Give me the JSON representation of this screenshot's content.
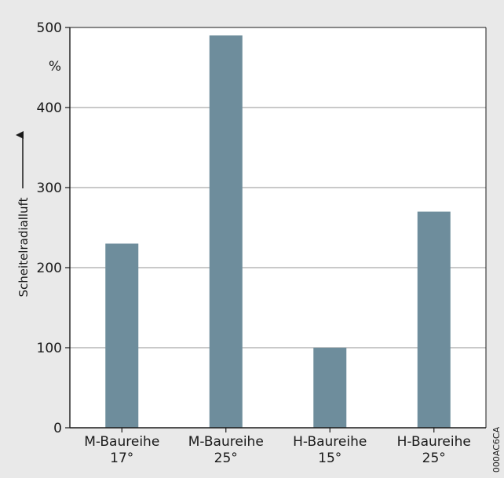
{
  "chart_data": {
    "type": "bar",
    "categories": [
      [
        "M-Baureihe",
        "17°"
      ],
      [
        "M-Baureihe",
        "25°"
      ],
      [
        "H-Baureihe",
        "15°"
      ],
      [
        "H-Baureihe",
        "25°"
      ]
    ],
    "values": [
      230,
      490,
      100,
      270
    ],
    "ylabel": "Scheitelradialluft",
    "yunit": "%",
    "ylim": [
      0,
      500
    ],
    "yticks": [
      0,
      100,
      200,
      300,
      400,
      500
    ],
    "grid": true,
    "colors": {
      "bar": "#6e8d9c",
      "plot_bg": "#ffffff",
      "page_bg": "#e9e9e9",
      "grid": "#a9a9a9"
    }
  },
  "figure_code": "000AC6CA"
}
